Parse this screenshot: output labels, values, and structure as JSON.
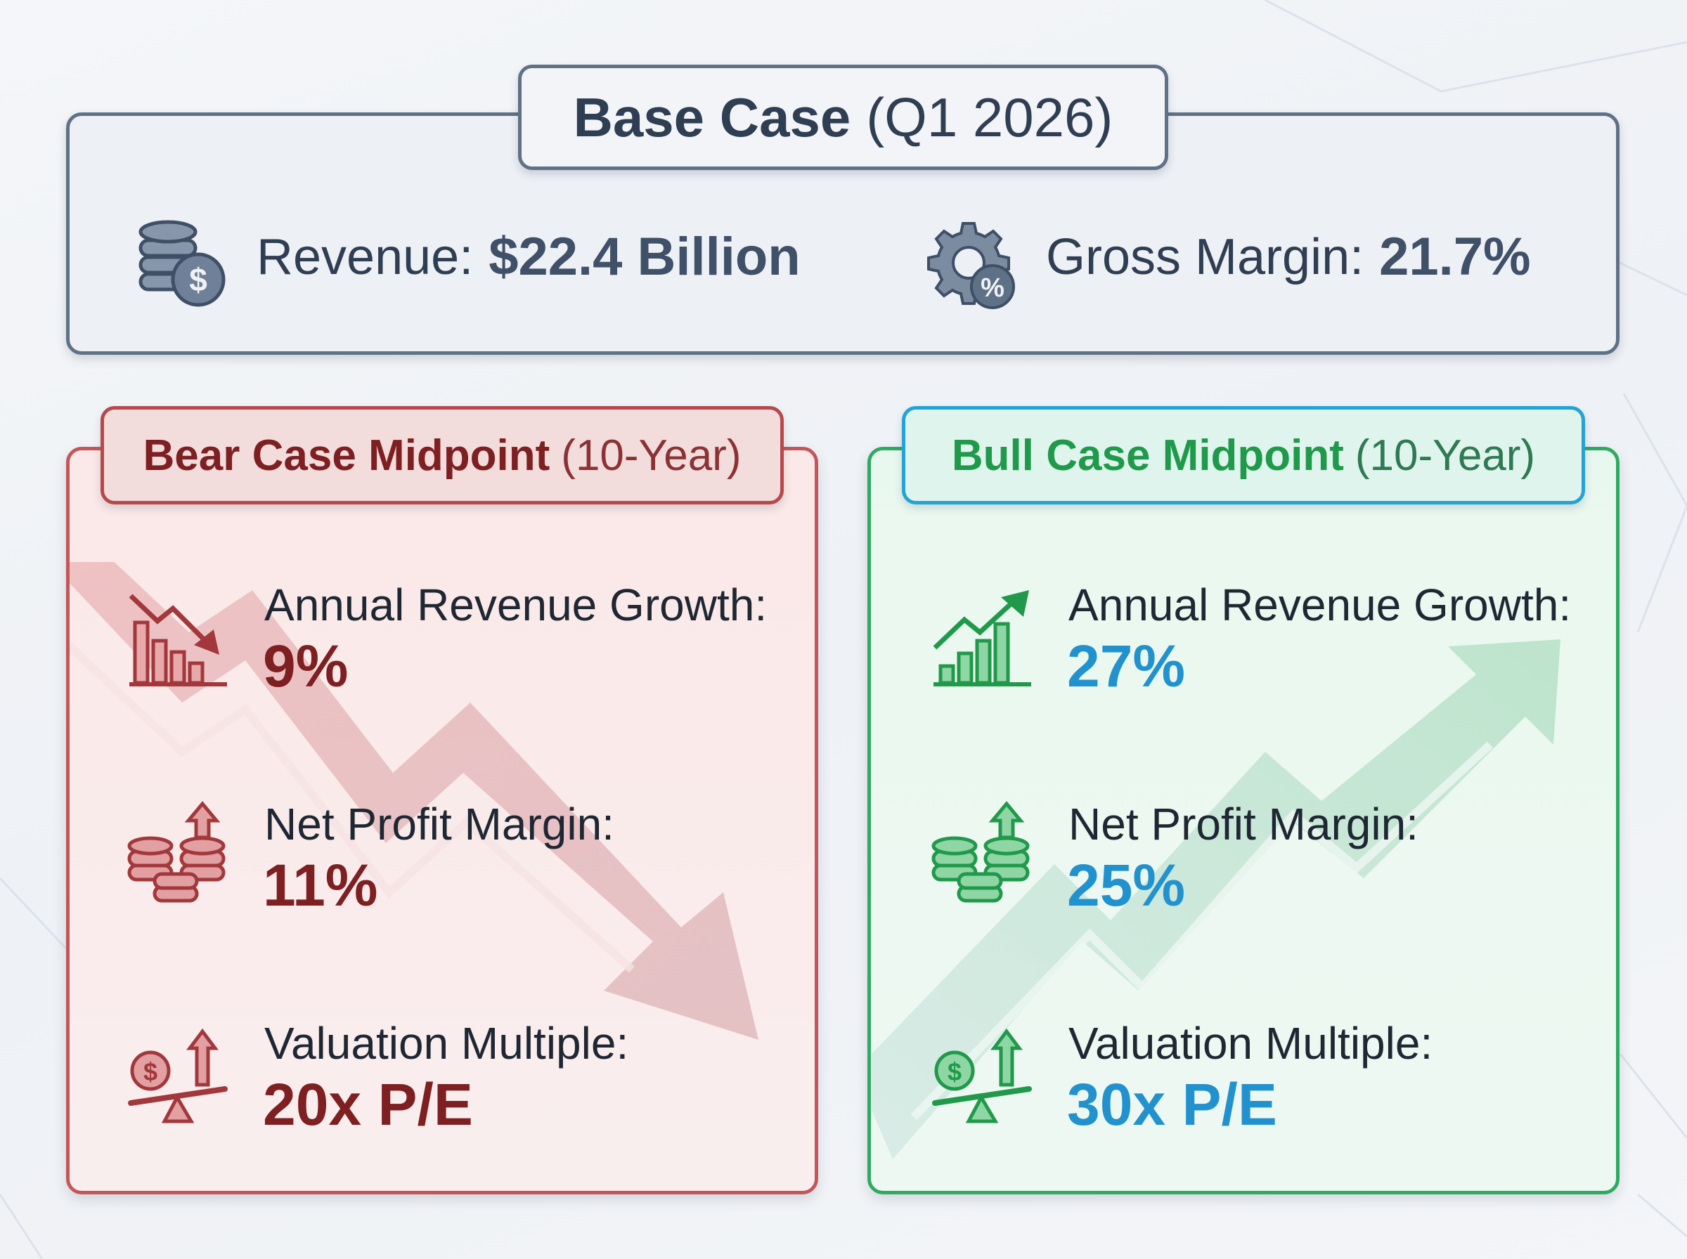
{
  "colors": {
    "base_border": "#5f7186",
    "base_text": "#2f3e52",
    "bear_accent": "#7e1f22",
    "bear_border": "#c4565a",
    "bull_title": "#1f9a4b",
    "bull_value": "#2292cf",
    "bull_border": "#2faa62"
  },
  "base": {
    "title_strong": "Base Case",
    "title_rest": "(Q1 2026)",
    "revenue": {
      "icon": "coins-dollar-icon",
      "label": "Revenue:",
      "value": "$22.4 Billion"
    },
    "gross_margin": {
      "icon": "gear-percent-icon",
      "label": "Gross Margin:",
      "value": "21.7%"
    }
  },
  "bear": {
    "title_strong": "Bear Case Midpoint",
    "title_rest": "(10-Year)",
    "items": [
      {
        "icon": "declining-bar-chart-icon",
        "label": "Annual Revenue Growth:",
        "value": "9%"
      },
      {
        "icon": "coins-arrow-up-icon",
        "label": "Net Profit Margin:",
        "value": "11%"
      },
      {
        "icon": "balance-scale-arrow-icon",
        "label": "Valuation Multiple:",
        "value": "20x P/E"
      }
    ]
  },
  "bull": {
    "title_strong": "Bull Case Midpoint",
    "title_rest": "(10-Year)",
    "items": [
      {
        "icon": "rising-bar-chart-icon",
        "label": "Annual Revenue Growth:",
        "value": "27%"
      },
      {
        "icon": "coins-arrow-up-icon",
        "label": "Net Profit Margin:",
        "value": "25%"
      },
      {
        "icon": "balance-scale-arrow-icon",
        "label": "Valuation Multiple:",
        "value": "30x P/E"
      }
    ]
  }
}
